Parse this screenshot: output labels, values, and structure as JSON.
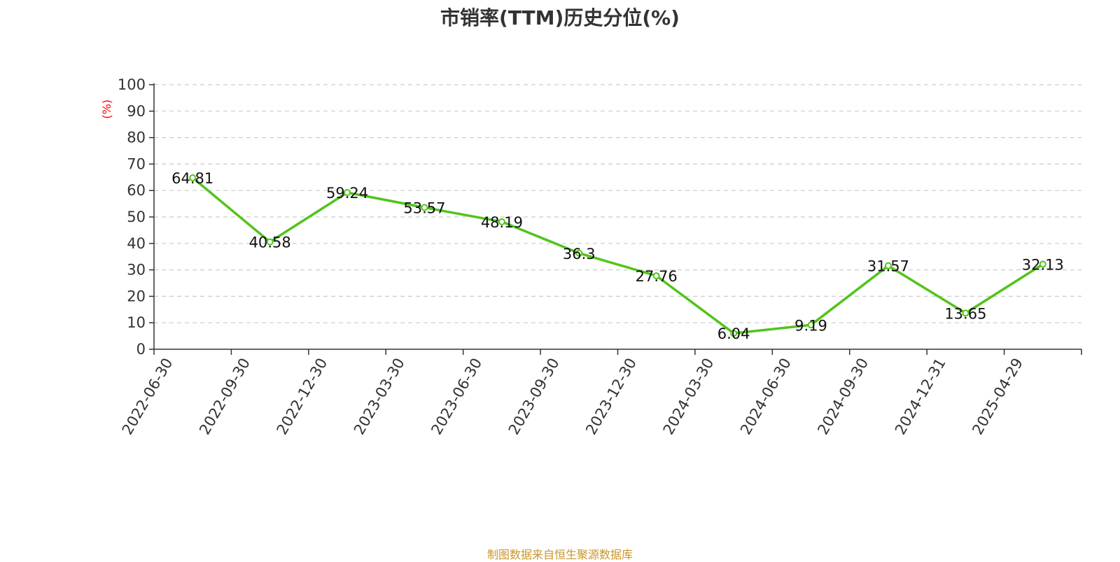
{
  "colors": {
    "line": "#52c41a",
    "title": "#333333",
    "axis": "#333333",
    "grid": "#cccccc",
    "unit": "#ff0000",
    "source": "#c8962a"
  },
  "source_text": "制图数据来自恒生聚源数据库",
  "chart_data": {
    "type": "line",
    "title": "市销率(TTM)历史分位(%)",
    "ylabel": "(%)",
    "ylim": [
      0,
      100
    ],
    "yticks": [
      0,
      10,
      20,
      30,
      40,
      50,
      60,
      70,
      80,
      90,
      100
    ],
    "grid": true,
    "categories": [
      "2022-06-30",
      "2022-09-30",
      "2022-12-30",
      "2023-03-30",
      "2023-06-30",
      "2023-09-30",
      "2023-12-30",
      "2024-03-30",
      "2024-06-30",
      "2024-09-30",
      "2024-12-31",
      "2025-04-29"
    ],
    "series": [
      {
        "values": [
          64.81,
          40.58,
          59.24,
          53.57,
          48.19,
          36.3,
          27.76,
          6.04,
          9.19,
          31.57,
          13.65,
          32.13
        ],
        "labels": [
          "64.81",
          "40.58",
          "59.24",
          "53.57",
          "48.19",
          "36.3",
          "27.76",
          "6.04",
          "9.19",
          "31.57",
          "13.65",
          "32.13"
        ]
      }
    ]
  }
}
